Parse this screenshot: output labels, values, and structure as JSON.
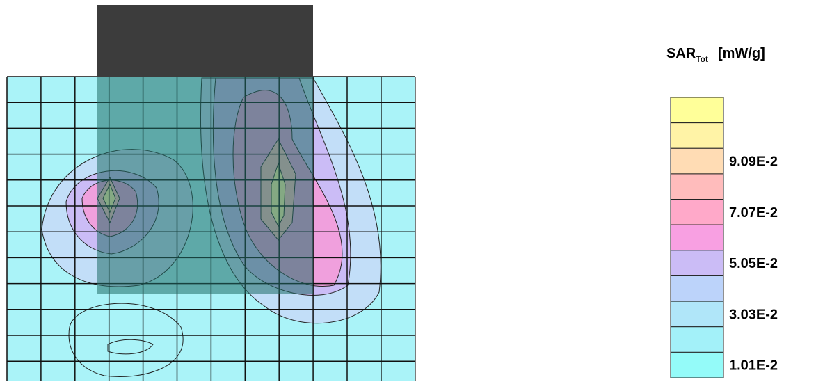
{
  "legend": {
    "title": "SAR",
    "subscript": "Tot",
    "unit": "[mW/g]",
    "colors": [
      "#ffff99",
      "#fff3a6",
      "#ffdcb4",
      "#ffbcbc",
      "#ffa9c9",
      "#f8a0e2",
      "#cbbcf6",
      "#bcd3fa",
      "#b0e6f9",
      "#a3f1f9",
      "#94fbf9"
    ],
    "labels": [
      "9.09E-2",
      "7.07E-2",
      "5.05E-2",
      "3.03E-2",
      "1.01E-2"
    ]
  }
}
